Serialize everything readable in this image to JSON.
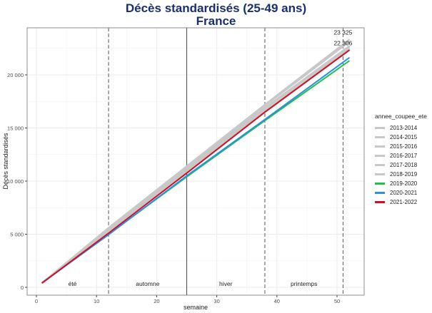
{
  "title": {
    "line1": "Décès standardisés (25-49 ans)",
    "line2": "France"
  },
  "chart_data": {
    "type": "line",
    "title": "Décès standardisés (25-49 ans) France",
    "xlabel": "semaine",
    "ylabel": "Décès standardisés",
    "xlim": [
      -1,
      55
    ],
    "ylim": [
      -700,
      24000
    ],
    "x_ticks": [
      0,
      10,
      20,
      30,
      40,
      50
    ],
    "x_tick_labels": [
      "0",
      "10",
      "20",
      "30",
      "40",
      "50"
    ],
    "y_ticks": [
      0,
      5000,
      10000,
      15000,
      20000
    ],
    "y_tick_labels": [
      "0",
      "5 000",
      "10 000",
      "15 000",
      "20 000"
    ],
    "grid": true,
    "legend_position": "right",
    "legend_title": "annee_coupee_ete",
    "vlines": [
      {
        "x": 12,
        "style": "dashed"
      },
      {
        "x": 25,
        "style": "solid"
      },
      {
        "x": 38,
        "style": "dashed"
      },
      {
        "x": 51,
        "style": "dashed"
      }
    ],
    "season_labels": [
      {
        "label": "été",
        "x": 6,
        "y": 300
      },
      {
        "label": "automne",
        "x": 18.5,
        "y": 300
      },
      {
        "label": "hiver",
        "x": 31.5,
        "y": 300
      },
      {
        "label": "printemps",
        "x": 44.5,
        "y": 300
      }
    ],
    "annotations": [
      {
        "text": "23 325",
        "x": 51,
        "y": 23325
      },
      {
        "text": "22 306",
        "x": 51,
        "y": 22306
      }
    ],
    "x": [
      1,
      12,
      25,
      38,
      52
    ],
    "series": [
      {
        "name": "2013-2014",
        "color": "#c8c8c8",
        "values": [
          450,
          5600,
          11400,
          17200,
          23300
        ]
      },
      {
        "name": "2014-2015",
        "color": "#c8c8c8",
        "values": [
          450,
          5500,
          11300,
          17100,
          23100
        ]
      },
      {
        "name": "2015-2016",
        "color": "#c8c8c8",
        "values": [
          450,
          5450,
          11200,
          16900,
          22700
        ]
      },
      {
        "name": "2016-2017",
        "color": "#c8c8c8",
        "values": [
          450,
          5400,
          11100,
          16800,
          22600
        ]
      },
      {
        "name": "2017-2018",
        "color": "#c8c8c8",
        "values": [
          450,
          5350,
          11000,
          16600,
          22400
        ]
      },
      {
        "name": "2018-2019",
        "color": "#c8c8c8",
        "values": [
          450,
          5300,
          10900,
          16500,
          22300
        ]
      },
      {
        "name": "2019-2020",
        "color": "#1fbf4a",
        "values": [
          450,
          5000,
          10400,
          15700,
          21300
        ]
      },
      {
        "name": "2020-2021",
        "color": "#2e8ee6",
        "values": [
          450,
          4950,
          10500,
          15800,
          21600
        ]
      },
      {
        "name": "2021-2022",
        "color": "#cc1126",
        "values": [
          420,
          5100,
          10750,
          16500,
          22306
        ]
      }
    ]
  }
}
